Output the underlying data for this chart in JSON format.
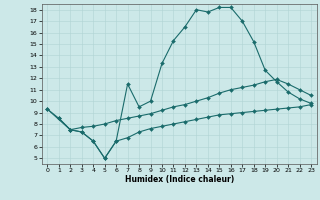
{
  "xlabel": "Humidex (Indice chaleur)",
  "xlim": [
    -0.5,
    23.5
  ],
  "ylim": [
    4.5,
    18.5
  ],
  "xticks": [
    0,
    1,
    2,
    3,
    4,
    5,
    6,
    7,
    8,
    9,
    10,
    11,
    12,
    13,
    14,
    15,
    16,
    17,
    18,
    19,
    20,
    21,
    22,
    23
  ],
  "yticks": [
    5,
    6,
    7,
    8,
    9,
    10,
    11,
    12,
    13,
    14,
    15,
    16,
    17,
    18
  ],
  "bg_color": "#cce8e8",
  "line_color": "#1a6b6b",
  "grid_color": "#b0d4d4",
  "line1_x": [
    0,
    1,
    2,
    3,
    4,
    5,
    6,
    7,
    8,
    9,
    10,
    11,
    12,
    13,
    14,
    15,
    16,
    17,
    18,
    19,
    20,
    21,
    22,
    23
  ],
  "line1_y": [
    9.3,
    8.5,
    7.5,
    7.3,
    6.5,
    5.0,
    6.5,
    11.5,
    9.5,
    10.0,
    13.3,
    15.3,
    16.5,
    18.0,
    17.8,
    18.2,
    18.2,
    17.0,
    15.2,
    12.7,
    11.7,
    10.8,
    10.2,
    9.8
  ],
  "line2_x": [
    0,
    2,
    3,
    4,
    5,
    6,
    7,
    8,
    9,
    10,
    11,
    12,
    13,
    14,
    15,
    16,
    17,
    18,
    19,
    20,
    21,
    22,
    23
  ],
  "line2_y": [
    9.3,
    7.5,
    7.7,
    7.8,
    8.0,
    8.3,
    8.5,
    8.7,
    8.9,
    9.2,
    9.5,
    9.7,
    10.0,
    10.3,
    10.7,
    11.0,
    11.2,
    11.4,
    11.7,
    11.9,
    11.5,
    11.0,
    10.5
  ],
  "line3_x": [
    1,
    2,
    3,
    4,
    5,
    6,
    7,
    8,
    9,
    10,
    11,
    12,
    13,
    14,
    15,
    16,
    17,
    18,
    19,
    20,
    21,
    22,
    23
  ],
  "line3_y": [
    8.5,
    7.5,
    7.3,
    6.5,
    5.0,
    6.5,
    6.8,
    7.3,
    7.6,
    7.8,
    8.0,
    8.2,
    8.4,
    8.6,
    8.8,
    8.9,
    9.0,
    9.1,
    9.2,
    9.3,
    9.4,
    9.5,
    9.7
  ]
}
